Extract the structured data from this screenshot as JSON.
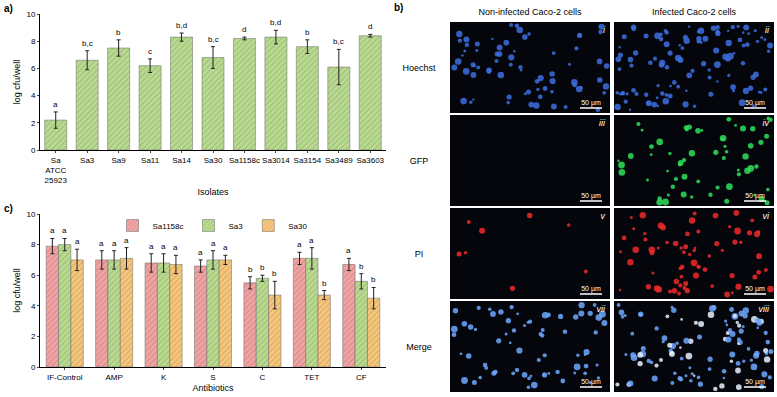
{
  "chart_data": [
    {
      "type": "bar",
      "panel_label": "a)",
      "x_label": "Isolates",
      "y_label": "log cfu/well",
      "categories": [
        "Sa ATCC 25923",
        "Sa3",
        "Sa9",
        "Sa11",
        "Sa14",
        "Sa30",
        "Sa1158c",
        "Sa3014",
        "Sa3154",
        "Sa3489",
        "Sa3603"
      ],
      "values": [
        2.2,
        6.6,
        7.5,
        6.2,
        8.3,
        6.8,
        8.2,
        8.3,
        7.6,
        6.1,
        8.4
      ],
      "errors": [
        0.6,
        0.7,
        0.6,
        0.5,
        0.3,
        0.8,
        0.1,
        0.5,
        0.5,
        1.3,
        0.1
      ],
      "annotations": [
        "a",
        "b,c",
        "b",
        "c",
        "b,d",
        "b,c",
        "d",
        "b,d",
        "b",
        "b,c",
        "d"
      ],
      "color": "#b9dc8f",
      "marker": "hatch",
      "ylim": [
        0,
        10
      ],
      "yticks": [
        0,
        2,
        4,
        6,
        8,
        10
      ],
      "grid": false
    },
    {
      "type": "bar",
      "panel_label": "c)",
      "x_label": "Antibiotics",
      "y_label": "log cfu/well",
      "categories": [
        "IF-Control",
        "AMP",
        "K",
        "S",
        "C",
        "TET",
        "CF"
      ],
      "series": [
        {
          "name": "Sa1158c",
          "color": "#f4a3a3",
          "marker": "hatch",
          "values": [
            7.9,
            7.0,
            6.8,
            6.6,
            5.5,
            7.1,
            6.7
          ],
          "errors": [
            0.5,
            0.6,
            0.6,
            0.4,
            0.4,
            0.4,
            0.4
          ],
          "annotations": [
            "a",
            "a",
            "a",
            "a",
            "b",
            "a",
            "a"
          ]
        },
        {
          "name": "Sa3",
          "color": "#b9dc8f",
          "marker": "hatch",
          "values": [
            8.0,
            7.0,
            6.8,
            7.0,
            5.8,
            7.1,
            5.6
          ],
          "errors": [
            0.4,
            0.6,
            0.6,
            0.6,
            0.2,
            0.7,
            0.5
          ],
          "annotations": [
            "a",
            "a",
            "a",
            "a",
            "b",
            "a",
            "b"
          ]
        },
        {
          "name": "Sa30",
          "color": "#f9c77a",
          "marker": "hatch",
          "values": [
            7.0,
            7.1,
            6.7,
            7.0,
            4.7,
            4.7,
            4.5
          ],
          "errors": [
            0.7,
            0.7,
            0.6,
            0.3,
            0.9,
            0.3,
            0.7
          ],
          "annotations": [
            "a",
            "a",
            "a",
            "a",
            "b",
            "b",
            "b"
          ]
        }
      ],
      "legend": "top",
      "ylim": [
        0,
        10
      ],
      "yticks": [
        0,
        2,
        4,
        6,
        8,
        10
      ],
      "grid": false
    }
  ],
  "image_panel": {
    "panel_label": "b)",
    "columns": [
      "Non-infected Caco-2 cells",
      "Infected Caco-2 cells"
    ],
    "rows": [
      {
        "label": "Hoechst",
        "panels": [
          "i",
          "ii"
        ],
        "color": "#3d6fe0"
      },
      {
        "label": "GFP",
        "panels": [
          "iii",
          "iv"
        ],
        "color": "#2ee05a"
      },
      {
        "label": "PI",
        "panels": [
          "v",
          "vi"
        ],
        "color": "#f02a2a"
      },
      {
        "label": "Merge",
        "panels": [
          "vii",
          "viii"
        ],
        "color": "#6fa8ff"
      }
    ],
    "scale_bar": "50 µm"
  }
}
